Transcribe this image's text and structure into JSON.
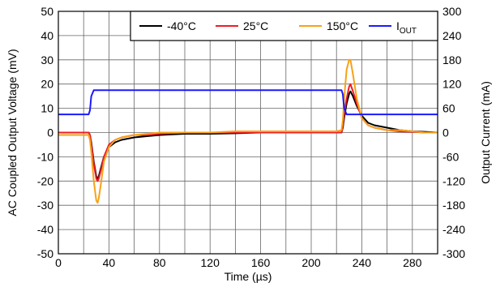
{
  "chart_data": {
    "type": "line",
    "xlabel": "Time (µs)",
    "ylabel": "AC Coupled Output Voltage (mV)",
    "y2label": "Output Current (mA)",
    "xlim": [
      0,
      300
    ],
    "ylim": [
      -50,
      50
    ],
    "y2lim": [
      -300,
      300
    ],
    "grid": true,
    "legend_position": "top-right",
    "x_ticks": [
      "0",
      "40",
      "80",
      "120",
      "160",
      "200",
      "240",
      "280"
    ],
    "y_ticks": [
      "-50",
      "-40",
      "-30",
      "-20",
      "-10",
      "0",
      "10",
      "20",
      "30",
      "40",
      "50"
    ],
    "y2_ticks": [
      "-300",
      "-240",
      "-180",
      "-120",
      "-60",
      "0",
      "60",
      "120",
      "180",
      "240",
      "300"
    ],
    "series": [
      {
        "name": "-40°C",
        "axis": "left",
        "color": "#000000",
        "x": [
          0,
          10,
          20,
          24,
          25,
          26,
          28,
          30,
          31,
          32,
          34,
          36,
          40,
          45,
          50,
          60,
          70,
          80,
          100,
          120,
          140,
          160,
          180,
          200,
          210,
          220,
          224,
          225,
          226,
          228,
          230,
          231,
          233,
          236,
          240,
          245,
          250,
          260,
          270,
          280,
          290,
          300
        ],
        "y": [
          0,
          0,
          0,
          0,
          -1,
          -4,
          -12,
          -18,
          -19,
          -18,
          -14,
          -10,
          -6,
          -4,
          -3,
          -2,
          -1.5,
          -1,
          -0.5,
          -0.5,
          -0.3,
          0,
          0,
          0,
          0,
          0,
          0,
          2,
          6,
          12,
          16,
          17,
          15,
          11,
          7,
          4,
          3,
          2,
          1,
          0.5,
          0.3,
          0
        ]
      },
      {
        "name": "25°C",
        "axis": "left",
        "color": "#ee1c25",
        "x": [
          0,
          10,
          20,
          24,
          25,
          26,
          28,
          30,
          31,
          32,
          34,
          36,
          40,
          45,
          50,
          60,
          70,
          80,
          100,
          120,
          140,
          160,
          180,
          200,
          210,
          220,
          224,
          225,
          226,
          228,
          230,
          231,
          233,
          236,
          240,
          245,
          250,
          260,
          270,
          280,
          290,
          300
        ],
        "y": [
          0,
          0,
          0,
          0,
          -1,
          -5,
          -13,
          -19,
          -20,
          -19,
          -15,
          -10,
          -5,
          -3,
          -2,
          -1,
          -1,
          -0.5,
          0,
          0,
          0,
          0,
          0,
          0,
          0,
          0,
          0,
          3,
          8,
          14,
          19,
          20,
          17,
          12,
          6,
          3,
          2,
          1,
          0.5,
          0.3,
          0,
          0
        ]
      },
      {
        "name": "150°C",
        "axis": "left",
        "color": "#f7a11a",
        "x": [
          0,
          10,
          20,
          24,
          25,
          26,
          28,
          30,
          31,
          32,
          34,
          36,
          40,
          45,
          50,
          60,
          70,
          80,
          100,
          120,
          140,
          160,
          180,
          200,
          210,
          220,
          224,
          225,
          226,
          228,
          230,
          231,
          233,
          236,
          240,
          245,
          250,
          260,
          270,
          280,
          290,
          300
        ],
        "y": [
          -1,
          -1,
          -1,
          -1,
          -3,
          -8,
          -20,
          -28,
          -29,
          -27,
          -20,
          -12,
          -6,
          -3,
          -2,
          -1,
          -0.5,
          0,
          0,
          0,
          0.5,
          0.5,
          0.5,
          0.5,
          0.5,
          0.5,
          1,
          5,
          14,
          26,
          30,
          30,
          24,
          14,
          6,
          3,
          2,
          1,
          1,
          0.5,
          0,
          0
        ]
      },
      {
        "name": "I",
        "name_sub": "OUT",
        "axis": "right",
        "color": "#1a1aff",
        "x": [
          0,
          24,
          25,
          26,
          28,
          60,
          100,
          150,
          200,
          224,
          225,
          226,
          228,
          260,
          300
        ],
        "y": [
          45,
          45,
          55,
          90,
          105,
          105,
          105,
          105,
          105,
          105,
          95,
          60,
          45,
          45,
          45
        ]
      }
    ]
  }
}
